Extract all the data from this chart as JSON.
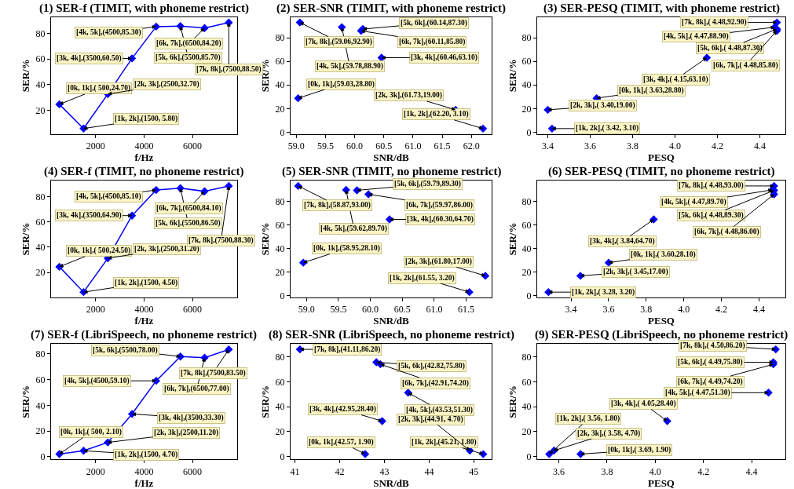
{
  "chart_data": [
    {
      "type": "line",
      "title": "(1) SER-f (TIMIT, with phoneme restrict)",
      "xlabel": "f/Hz",
      "ylabel": "SER/%",
      "color": "#0000ff",
      "marker": "diamond",
      "grid": false,
      "x": [
        500,
        1500,
        2500,
        3500,
        4500,
        5500,
        6500,
        7500
      ],
      "values": [
        24.7,
        5.8,
        32.7,
        60.5,
        85.3,
        85.7,
        84.2,
        88.5
      ],
      "value_labels": [
        "[0k, 1k],( 500,24.70)",
        "[1k, 2k],(1500, 5.80)",
        "[2k, 3k],(2500,32.70)",
        "[3k, 4k],(3500,60.50)",
        "[4k, 5k],(4500,85.30)",
        "[5k, 6k],(5500,85.70)",
        "[6k, 7k],(6500,84.20)",
        "[7k, 8k],(7500,88.50)"
      ],
      "xlim": [
        150,
        7850
      ],
      "ylim": [
        1.6,
        92.7
      ],
      "xticks": [
        2000,
        4000,
        6000
      ],
      "yticks": [
        20,
        40,
        60,
        80
      ]
    },
    {
      "type": "scatter",
      "title": "(2) SER-SNR (TIMIT, with phoneme restrict)",
      "xlabel": "SNR/dB",
      "ylabel": "SER/%",
      "color": "#0000ff",
      "marker": "diamond",
      "grid": false,
      "x": [
        59.03,
        62.2,
        61.73,
        60.46,
        59.78,
        60.14,
        60.11,
        59.06
      ],
      "values": [
        28.8,
        3.1,
        19.0,
        63.1,
        88.9,
        87.3,
        85.8,
        92.9
      ],
      "value_labels": [
        "[0k, 1k],(59.03,28.80)",
        "[1k, 2k],(62.20, 3.10)",
        "[2k, 3k],(61.73,19.00)",
        "[3k, 4k],(60.46,63.10)",
        "[4k, 5k],(59.78,88.90)",
        "[5k, 6k],(60.14,87.30)",
        "[6k, 7k],(60.11,85.80)",
        "[7k, 8k],(59.06,92.90)"
      ],
      "xlim": [
        58.9,
        62.35
      ],
      "ylim": [
        -1.4,
        97.4
      ],
      "xticks": [
        {
          "value": 59,
          "label": "59.0"
        },
        59.5,
        {
          "value": 60,
          "label": "60.0"
        },
        60.5,
        {
          "value": 61,
          "label": "61.0"
        },
        61.5,
        {
          "value": 62,
          "label": "62.0"
        }
      ],
      "yticks": [
        0,
        20,
        40,
        60,
        80
      ]
    },
    {
      "type": "scatter",
      "title": "(3) SER-PESQ (TIMIT, with phoneme restrict)",
      "xlabel": "PESQ",
      "ylabel": "SER/%",
      "color": "#0000ff",
      "marker": "diamond",
      "grid": false,
      "x": [
        3.63,
        3.42,
        3.4,
        4.15,
        4.47,
        4.48,
        4.48,
        4.48
      ],
      "values": [
        28.8,
        3.1,
        19.0,
        63.1,
        88.9,
        87.3,
        85.8,
        92.9
      ],
      "value_labels": [
        "[0k, 1k],( 3.63,28.80)",
        "[1k, 2k],( 3.42, 3.10)",
        "[2k, 3k],( 3.40,19.00)",
        "[3k, 4k],( 4.15,63.10)",
        "[4k, 5k],( 4.47,88.90)",
        "[5k, 6k],( 4.48,87.30)",
        "[6k, 7k],( 4.48,85.80)",
        "[7k, 8k],( 4.48,92.90)"
      ],
      "xlim": [
        3.35,
        4.52
      ],
      "ylim": [
        -1.4,
        97.4
      ],
      "xticks": [
        3.4,
        3.6,
        3.8,
        {
          "value": 4,
          "label": "4.0"
        },
        4.2,
        4.4
      ],
      "yticks": [
        0,
        20,
        40,
        60,
        80
      ]
    },
    {
      "type": "line",
      "title": "(4) SER-f (TIMIT, no phoneme restrict)",
      "xlabel": "f/Hz",
      "ylabel": "SER/%",
      "color": "#0000ff",
      "marker": "diamond",
      "grid": false,
      "x": [
        500,
        1500,
        2500,
        3500,
        4500,
        5500,
        6500,
        7500
      ],
      "values": [
        24.5,
        4.5,
        31.2,
        64.9,
        85.1,
        86.5,
        84.1,
        88.3
      ],
      "value_labels": [
        "[0k, 1k],( 500,24.50)",
        "[1k, 2k],(1500, 4.50)",
        "[2k, 3k],(2500,31.20)",
        "[3k, 4k],(3500,64.90)",
        "[4k, 5k],(4500,85.10)",
        "[5k, 6k],(5500,86.50)",
        "[6k, 7k],(6500,84.10)",
        "[7k, 8k],(7500,88.30)"
      ],
      "xlim": [
        150,
        7850
      ],
      "ylim": [
        0.3,
        92.5
      ],
      "xticks": [
        2000,
        4000,
        6000
      ],
      "yticks": [
        20,
        40,
        60,
        80
      ]
    },
    {
      "type": "scatter",
      "title": "(5) SER-SNR (TIMIT, no phoneme restrict)",
      "xlabel": "SNR/dB",
      "ylabel": "SER/%",
      "color": "#0000ff",
      "marker": "diamond",
      "grid": false,
      "x": [
        58.95,
        61.55,
        61.8,
        60.3,
        59.62,
        59.79,
        59.97,
        58.87
      ],
      "values": [
        28.1,
        3.2,
        17.0,
        64.7,
        89.7,
        89.3,
        86.0,
        93.0
      ],
      "value_labels": [
        "[0k, 1k],(58.95,28.10)",
        "[1k, 2k],(61.55, 3.20)",
        "[2k, 3k],(61.80,17.00)",
        "[3k, 4k],(60.30,64.70)",
        "[4k, 5k],(59.62,89.70)",
        "[5k, 6k],(59.79,89.30)",
        "[6k, 7k],(59.97,86.00)",
        "[7k, 8k],(58.87,93.00)"
      ],
      "xlim": [
        58.75,
        61.9
      ],
      "ylim": [
        -1.3,
        97.5
      ],
      "xticks": [
        {
          "value": 59,
          "label": "59.0"
        },
        59.5,
        {
          "value": 60,
          "label": "60.0"
        },
        60.5,
        {
          "value": 61,
          "label": "61.0"
        },
        61.5
      ],
      "yticks": [
        0,
        20,
        40,
        60,
        80
      ]
    },
    {
      "type": "scatter",
      "title": "(6) SER-PESQ (TIMIT, no phoneme restrict)",
      "xlabel": "PESQ",
      "ylabel": "SER/%",
      "color": "#0000ff",
      "marker": "diamond",
      "grid": false,
      "x": [
        3.6,
        3.28,
        3.45,
        3.84,
        4.47,
        4.48,
        4.48,
        4.48
      ],
      "values": [
        28.1,
        3.2,
        17.0,
        64.7,
        89.7,
        89.3,
        86.0,
        93.0
      ],
      "value_labels": [
        "[0k, 1k],( 3.60,28.10)",
        "[1k, 2k],( 3.28, 3.20)",
        "[2k, 3k],( 3.45,17.00)",
        "[3k, 4k],( 3.84,64.70)",
        "[4k, 5k],( 4.47,89.70)",
        "[5k, 6k],( 4.48,89.30)",
        "[6k, 7k],( 4.48,86.00)",
        "[7k, 8k],( 4.48,93.00)"
      ],
      "xlim": [
        3.22,
        4.54
      ],
      "ylim": [
        -1.3,
        97.5
      ],
      "xticks": [
        3.4,
        3.6,
        3.8,
        {
          "value": 4,
          "label": "4.0"
        },
        4.2,
        4.4
      ],
      "yticks": [
        0,
        20,
        40,
        60,
        80
      ]
    },
    {
      "type": "line",
      "title": "(7) SER-f (LibriSpeech, no phoneme restrict)",
      "xlabel": "f/Hz",
      "ylabel": "SER/%",
      "color": "#0000ff",
      "marker": "diamond",
      "grid": false,
      "x": [
        500,
        1500,
        2500,
        3500,
        4500,
        5500,
        6500,
        7500
      ],
      "values": [
        2.1,
        4.7,
        11.2,
        33.3,
        59.1,
        78.0,
        77.0,
        83.5
      ],
      "value_labels": [
        "[0k, 1k],( 500, 2.10)",
        "[1k, 2k],(1500, 4.70)",
        "[2k, 3k],(2500,11.20)",
        "[3k, 4k],(3500,33.30)",
        "[4k, 5k],(4500,59.10)",
        "[5k, 6k],(5500,78.00)",
        "[6k, 7k],(6500,77.00)",
        "[7k, 8k],(7500,83.50)"
      ],
      "xlim": [
        150,
        7850
      ],
      "ylim": [
        -2,
        87.6
      ],
      "xticks": [
        2000,
        4000,
        6000
      ],
      "yticks": [
        0,
        20,
        40,
        60,
        80
      ]
    },
    {
      "type": "scatter",
      "title": "(8) SER-SNR (LibriSpeech, no phoneme restrict)",
      "xlabel": "SNR/dB",
      "ylabel": "SER/%",
      "color": "#0000ff",
      "marker": "diamond",
      "grid": false,
      "x": [
        42.57,
        45.21,
        44.91,
        42.95,
        43.53,
        42.82,
        42.91,
        41.11
      ],
      "values": [
        1.9,
        1.8,
        4.7,
        28.4,
        51.3,
        75.8,
        74.2,
        86.2
      ],
      "value_labels": [
        "[0k, 1k],(42.57, 1.90)",
        "[1k, 2k],(45.21, 1.80)",
        "[2k, 3k],(44.91, 4.70)",
        "[3k, 4k],(42.95,28.40)",
        "[4k, 5k],(43.53,51.30)",
        "[5k, 6k],(42.82,75.80)",
        "[6k, 7k],(42.91,74.20)",
        "[7k, 8k],(41.11,86.20)"
      ],
      "xlim": [
        40.9,
        45.4
      ],
      "ylim": [
        -2.4,
        90.4
      ],
      "xticks": [
        41,
        42,
        43,
        44,
        45
      ],
      "yticks": [
        0,
        20,
        40,
        60,
        80
      ]
    },
    {
      "type": "scatter",
      "title": "(9) SER-PESQ (LibriSpeech, no phoneme restrict)",
      "xlabel": "PESQ",
      "ylabel": "SER/%",
      "color": "#0000ff",
      "marker": "diamond",
      "grid": false,
      "x": [
        3.69,
        3.56,
        3.58,
        4.05,
        4.47,
        4.49,
        4.49,
        4.5
      ],
      "values": [
        1.9,
        1.8,
        4.7,
        28.4,
        51.3,
        75.8,
        74.2,
        86.2
      ],
      "value_labels": [
        "[0k, 1k],( 3.69, 1.90)",
        "[1k, 2k],( 3.56, 1.80)",
        "[2k, 3k],( 3.58, 4.70)",
        "[3k, 4k],( 4.05,28.40)",
        "[4k, 5k],( 4.47,51.30)",
        "[5k, 6k],( 4.49,75.80)",
        "[6k, 7k],( 4.49,74.20)",
        "[7k, 8k],( 4.50,86.20)"
      ],
      "xlim": [
        3.51,
        4.54
      ],
      "ylim": [
        -2.4,
        90.4
      ],
      "xticks": [
        3.6,
        3.8,
        {
          "value": 4,
          "label": "4.0"
        },
        4.2,
        4.4
      ],
      "yticks": [
        0,
        20,
        40,
        60,
        80
      ]
    }
  ]
}
